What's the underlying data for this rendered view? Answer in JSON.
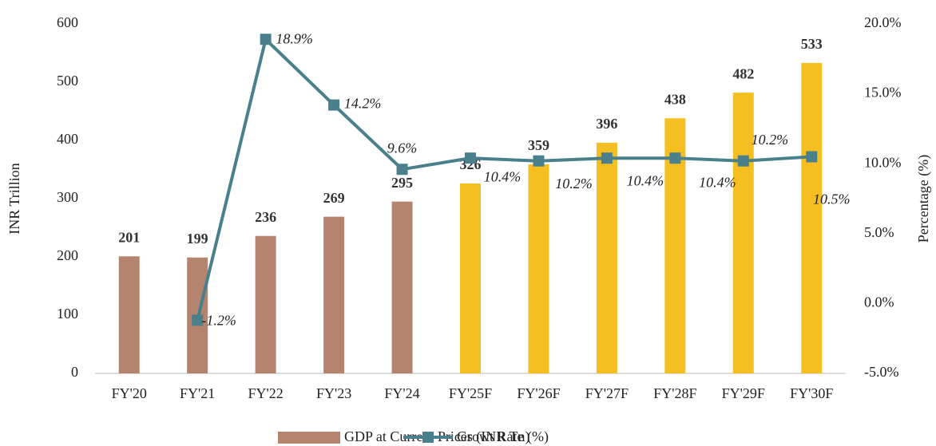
{
  "chart_data": {
    "type": "bar-line",
    "categories": [
      "FY'20",
      "FY'21",
      "FY'22",
      "FY'23",
      "FY'24",
      "FY'25F",
      "FY'26F",
      "FY'27F",
      "FY'28F",
      "FY'29F",
      "FY'30F"
    ],
    "ylabel": "INR Trillion",
    "y2label": "Percentage (%)",
    "ylim": [
      0,
      600
    ],
    "yticks": [
      0,
      100,
      200,
      300,
      400,
      500,
      600
    ],
    "y2lim": [
      -5,
      20
    ],
    "y2ticks": [
      {
        "value": -5,
        "label": "-5.0%"
      },
      {
        "value": 0,
        "label": "0.0%"
      },
      {
        "value": 5,
        "label": "5.0%"
      },
      {
        "value": 10,
        "label": "10.0%"
      },
      {
        "value": 15,
        "label": "15.0%"
      },
      {
        "value": 20,
        "label": "20.0%"
      }
    ],
    "series": [
      {
        "name": "GDP at Current Prices (INR Tn)",
        "type": "bar",
        "color": "#b5846f",
        "colors": [
          "#b5846f",
          "#b5846f",
          "#b5846f",
          "#b5846f",
          "#b5846f",
          "#f5bf22",
          "#f5bf22",
          "#f5bf22",
          "#f5bf22",
          "#f5bf22",
          "#f5bf22"
        ],
        "values": [
          201,
          199,
          236,
          269,
          295,
          326,
          359,
          396,
          438,
          482,
          533
        ]
      },
      {
        "name": "Growt Rate (%)",
        "type": "line",
        "axis": "y2",
        "color": "#4a7f8c",
        "values": [
          null,
          -1.2,
          18.9,
          14.2,
          9.6,
          10.4,
          10.2,
          10.4,
          10.4,
          10.2,
          10.5
        ],
        "value_labels": [
          null,
          "-1.2%",
          "18.9%",
          "14.2%",
          "9.6%",
          "10.4%",
          "10.2%",
          "10.4%",
          "10.4%",
          "10.2%",
          "10.5%"
        ]
      }
    ]
  }
}
